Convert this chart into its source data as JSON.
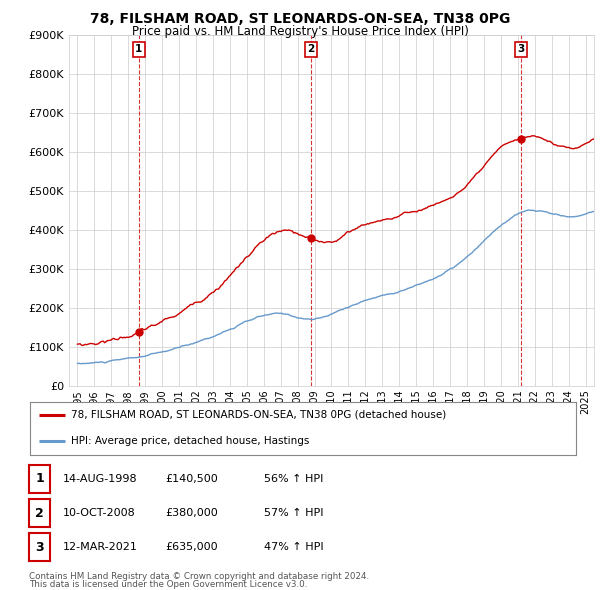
{
  "title": "78, FILSHAM ROAD, ST LEONARDS-ON-SEA, TN38 0PG",
  "subtitle": "Price paid vs. HM Land Registry's House Price Index (HPI)",
  "red_label": "78, FILSHAM ROAD, ST LEONARDS-ON-SEA, TN38 0PG (detached house)",
  "blue_label": "HPI: Average price, detached house, Hastings",
  "sales": [
    {
      "num": 1,
      "date": "14-AUG-1998",
      "price": 140500,
      "pct": "56%",
      "dir": "↑",
      "year": 1998.62
    },
    {
      "num": 2,
      "date": "10-OCT-2008",
      "price": 380000,
      "pct": "57%",
      "dir": "↑",
      "year": 2008.78
    },
    {
      "num": 3,
      "date": "12-MAR-2021",
      "price": 635000,
      "pct": "47%",
      "dir": "↑",
      "year": 2021.19
    }
  ],
  "footnote1": "Contains HM Land Registry data © Crown copyright and database right 2024.",
  "footnote2": "This data is licensed under the Open Government Licence v3.0.",
  "ylim": [
    0,
    900000
  ],
  "yticks": [
    0,
    100000,
    200000,
    300000,
    400000,
    500000,
    600000,
    700000,
    800000,
    900000
  ],
  "xlim_start": 1994.5,
  "xlim_end": 2025.5,
  "xticks": [
    1995,
    1996,
    1997,
    1998,
    1999,
    2000,
    2001,
    2002,
    2003,
    2004,
    2005,
    2006,
    2007,
    2008,
    2009,
    2010,
    2011,
    2012,
    2013,
    2014,
    2015,
    2016,
    2017,
    2018,
    2019,
    2020,
    2021,
    2022,
    2023,
    2024,
    2025
  ],
  "red_color": "#cc0000",
  "blue_color": "#6699cc",
  "grid_color": "#cccccc",
  "bg_color": "#ffffff"
}
